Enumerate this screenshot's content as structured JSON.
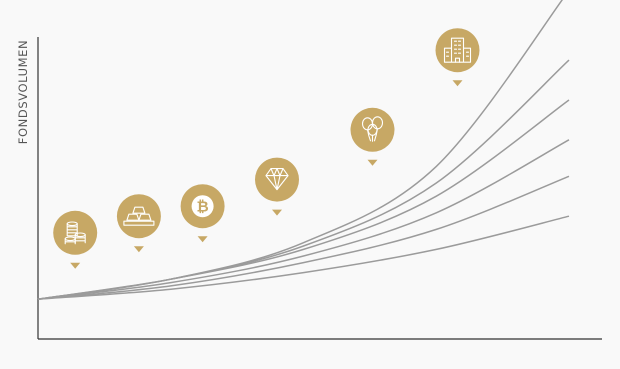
{
  "chart_data": {
    "type": "line",
    "title": "",
    "xlabel": "",
    "ylabel": "FONDSVOLUMEN",
    "grid": false,
    "legend": false,
    "ylim": [
      0,
      1
    ],
    "xlim": [
      0,
      1
    ],
    "series": [
      {
        "values": [
          [
            0,
            0.12
          ],
          [
            0.25,
            0.18
          ],
          [
            0.5,
            0.29
          ],
          [
            0.75,
            0.52
          ],
          [
            1.0,
            1.05
          ]
        ]
      },
      {
        "values": [
          [
            0,
            0.12
          ],
          [
            0.25,
            0.18
          ],
          [
            0.5,
            0.28
          ],
          [
            0.75,
            0.47
          ],
          [
            1.0,
            0.84
          ]
        ]
      },
      {
        "values": [
          [
            0,
            0.12
          ],
          [
            0.25,
            0.18
          ],
          [
            0.5,
            0.27
          ],
          [
            0.75,
            0.43
          ],
          [
            1.0,
            0.72
          ]
        ]
      },
      {
        "values": [
          [
            0,
            0.12
          ],
          [
            0.25,
            0.17
          ],
          [
            0.5,
            0.25
          ],
          [
            0.75,
            0.38
          ],
          [
            1.0,
            0.6
          ]
        ]
      },
      {
        "values": [
          [
            0,
            0.12
          ],
          [
            0.25,
            0.16
          ],
          [
            0.5,
            0.23
          ],
          [
            0.75,
            0.33
          ],
          [
            1.0,
            0.49
          ]
        ]
      },
      {
        "values": [
          [
            0,
            0.12
          ],
          [
            0.25,
            0.15
          ],
          [
            0.5,
            0.2
          ],
          [
            0.75,
            0.27
          ],
          [
            1.0,
            0.37
          ]
        ]
      }
    ],
    "markers": [
      {
        "icon": "coin-stack-icon",
        "x": 0.07,
        "y": 0.32
      },
      {
        "icon": "gold-bars-icon",
        "x": 0.19,
        "y": 0.37
      },
      {
        "icon": "bitcoin-icon",
        "x": 0.31,
        "y": 0.4
      },
      {
        "icon": "diamond-icon",
        "x": 0.45,
        "y": 0.48
      },
      {
        "icon": "balloons-icon",
        "x": 0.63,
        "y": 0.63
      },
      {
        "icon": "office-building-icon",
        "x": 0.79,
        "y": 0.87
      }
    ]
  },
  "colors": {
    "background": "#f9f9f9",
    "axis": "#333333",
    "curve": "#9b9b9b",
    "marker": "#c7a865",
    "icon": "#ffffff"
  }
}
